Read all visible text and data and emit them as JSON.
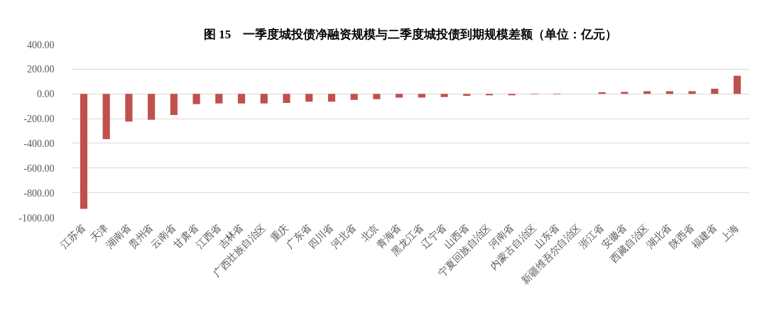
{
  "chart_data": {
    "type": "bar",
    "title": "图 15　一季度城投债净融资规模与二季度城投债到期规模差额（单位：亿元）",
    "categories": [
      "江苏省",
      "天津",
      "湖南省",
      "贵州省",
      "云南省",
      "甘肃省",
      "江西省",
      "吉林省",
      "广西壮族自治区",
      "重庆",
      "广东省",
      "四川省",
      "河北省",
      "北京",
      "青海省",
      "黑龙江省",
      "辽宁省",
      "山西省",
      "宁夏回族自治区",
      "河南省",
      "内蒙古自治区",
      "山东省",
      "新疆维吾尔自治区",
      "浙江省",
      "安徽省",
      "西藏自治区",
      "湖北省",
      "陕西省",
      "福建省",
      "上海"
    ],
    "values": [
      -930,
      -366,
      -224,
      -210,
      -171,
      -83,
      -77,
      -77,
      -77,
      -73,
      -63,
      -63,
      -49,
      -43,
      -31,
      -31,
      -26,
      -16,
      -12,
      -12,
      -5,
      -4,
      0,
      12,
      16,
      22,
      22,
      22,
      41,
      146
    ],
    "color": "#c0504d",
    "ylim": [
      -1000,
      400
    ],
    "yticks": [
      {
        "value": 400,
        "label": "400.00"
      },
      {
        "value": 200,
        "label": "200.00"
      },
      {
        "value": 0,
        "label": "0.00"
      },
      {
        "value": -200,
        "label": "-200.00"
      },
      {
        "value": -400,
        "label": "-400.00"
      },
      {
        "value": -600,
        "label": "-600.00"
      },
      {
        "value": -800,
        "label": "-800.00"
      },
      {
        "value": -1000,
        "label": "-1000.00"
      }
    ],
    "grid": "y"
  }
}
